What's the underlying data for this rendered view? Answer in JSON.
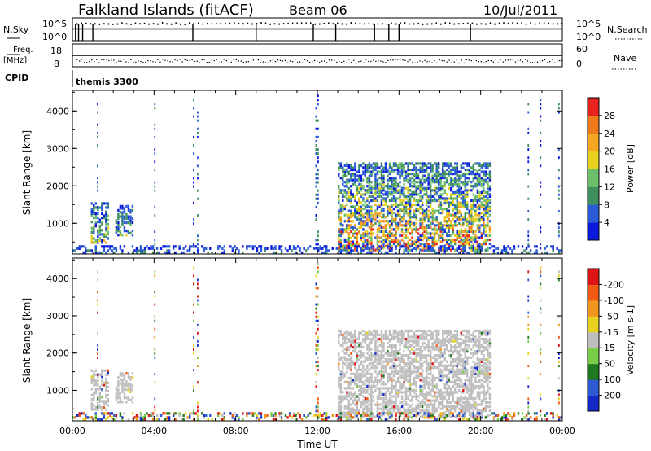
{
  "header": {
    "station": "Falkland Islands (fitACF)",
    "beam": "Beam 06",
    "date": "10/Jul/2011"
  },
  "strips": {
    "nsky_label": "N.Sky",
    "nsky_hi": "10^5",
    "nsky_lo": "10^0",
    "nsearch_label": "N.Search",
    "nsearch_hi": "10^5",
    "nsearch_lo": "10^0",
    "freq_label": "Freq.",
    "freq_unit": "[MHz]",
    "freq_hi": "18",
    "freq_lo": "8",
    "nave_label": "Nave",
    "nave_hi": "60",
    "nave_lo": "0",
    "cpid_label": "CPID",
    "cpid_value": "themis 3300"
  },
  "colors": {
    "power_scale": [
      "#0a1adc",
      "#2a5bd7",
      "#3f8f5f",
      "#6bbf6b",
      "#e6d21e",
      "#f5a623",
      "#f07b1a",
      "#e8221c"
    ],
    "velocity_scale": [
      "#1428c8",
      "#2d5ad2",
      "#1e7a1e",
      "#7acd46",
      "#bebebe",
      "#e6d21e",
      "#f0961e",
      "#f05a14",
      "#dc1414"
    ],
    "ground_scatter": "#bebebe"
  },
  "chart_data": [
    {
      "type": "heatmap",
      "name": "power",
      "x_label": "",
      "y_label": "Slant Range [km]",
      "x_ticks": [
        "00:00",
        "04:00",
        "08:00",
        "12:00",
        "16:00",
        "20:00",
        "00:00"
      ],
      "y_ticks": [
        "1000",
        "2000",
        "3000",
        "4000"
      ],
      "x_range_hours": [
        0,
        24
      ],
      "y_range_km": [
        180,
        4550
      ],
      "colorbar": {
        "label": "Power [dB]",
        "ticks": [
          "4",
          "8",
          "12",
          "16",
          "20",
          "24",
          "28"
        ],
        "range": [
          0,
          32
        ]
      },
      "echo_regions": [
        {
          "t0": 0.9,
          "t1": 1.8,
          "r0": 450,
          "r1": 1500,
          "max_db": 22
        },
        {
          "t0": 2.1,
          "t1": 3.0,
          "r0": 650,
          "r1": 1450,
          "max_db": 16
        },
        {
          "t0": 13.0,
          "t1": 20.5,
          "r0": 250,
          "r1": 2600,
          "max_db": 30
        },
        {
          "t0": 0.0,
          "t1": 24.0,
          "r0": 180,
          "r1": 350,
          "max_db": 10
        }
      ]
    },
    {
      "type": "heatmap",
      "name": "velocity",
      "x_label": "Time UT",
      "y_label": "Slant Range [km]",
      "x_ticks": [
        "00:00",
        "04:00",
        "08:00",
        "12:00",
        "16:00",
        "20:00",
        "00:00"
      ],
      "y_ticks": [
        "1000",
        "2000",
        "3000",
        "4000"
      ],
      "x_range_hours": [
        0,
        24
      ],
      "y_range_km": [
        180,
        4550
      ],
      "colorbar": {
        "label": "Velocity [m s-1]",
        "ticks": [
          "200",
          "100",
          "50",
          "15",
          "-15",
          "-50",
          "-100",
          "-200"
        ],
        "range": [
          -250,
          250
        ]
      },
      "echo_regions": [
        {
          "t0": 0.9,
          "t1": 2.9,
          "r0": 450,
          "r1": 1500,
          "velocity": 0,
          "ground_scatter": true
        },
        {
          "t0": 13.0,
          "t1": 20.5,
          "r0": 250,
          "r1": 2600,
          "velocity": 0,
          "ground_scatter": true
        }
      ]
    }
  ]
}
